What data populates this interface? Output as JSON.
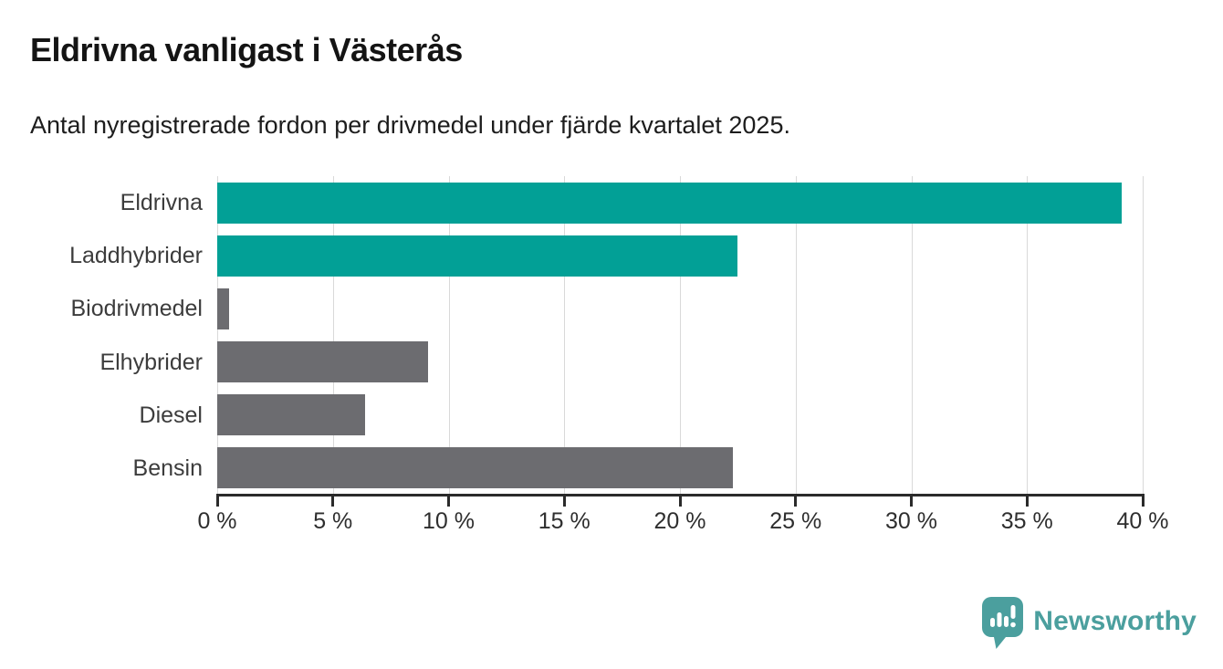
{
  "header": {
    "title": "Eldrivna vanligast i Västerås",
    "subtitle": "Antal nyregistrerade fordon per drivmedel under fjärde kvartalet 2025."
  },
  "chart_data": {
    "type": "bar",
    "orientation": "horizontal",
    "title": "Eldrivna vanligast i Västerås",
    "subtitle": "Antal nyregistrerade fordon per drivmedel under fjärde kvartalet 2025.",
    "categories": [
      "Eldrivna",
      "Laddhybrider",
      "Biodrivmedel",
      "Elhybrider",
      "Diesel",
      "Bensin"
    ],
    "values": [
      39.1,
      22.5,
      0.5,
      9.1,
      6.4,
      22.3
    ],
    "unit": "%",
    "bar_colors": [
      "#02a096",
      "#02a096",
      "#6c6c70",
      "#6c6c70",
      "#6c6c70",
      "#6c6c70"
    ],
    "highlight_color": "#02a096",
    "default_color": "#6c6c70",
    "xlim": [
      0,
      40
    ],
    "xticks": [
      0,
      5,
      10,
      15,
      20,
      25,
      30,
      35,
      40
    ],
    "xtick_labels": [
      "0 %",
      "5 %",
      "10 %",
      "15 %",
      "20 %",
      "25 %",
      "30 %",
      "35 %",
      "40 %"
    ],
    "grid": true,
    "gridline_color": "#d9d9d9",
    "axis_color": "#2b2b2b",
    "legend": "none",
    "ylabel": "",
    "xlabel": ""
  },
  "footer": {
    "brand": "Newsworthy",
    "logo_icon": "newsworthy-speech-bubble-chart-icon",
    "brand_color": "#4b9f9e"
  }
}
